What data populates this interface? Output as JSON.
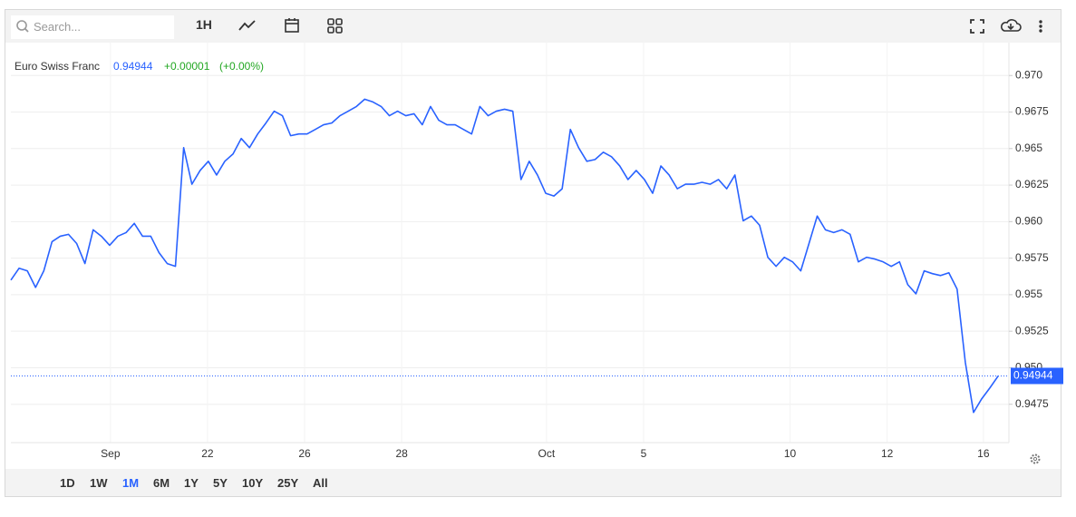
{
  "toolbar": {
    "search_placeholder": "Search...",
    "interval": "1H"
  },
  "ranges": {
    "items": [
      "1D",
      "1W",
      "1M",
      "6M",
      "1Y",
      "5Y",
      "10Y",
      "25Y",
      "All"
    ],
    "active": "1M"
  },
  "chart_data": {
    "type": "line",
    "legend": {
      "name": "Euro Swiss Franc",
      "price": "0.94944",
      "change": "+0.00001",
      "change_pct": "(+0.00%)"
    },
    "last_value": 0.94944,
    "last_label": "0.94944",
    "color": "#2962ff",
    "grid": true,
    "xlim": [
      0,
      121.3
    ],
    "xticks": [
      {
        "value": 12.1,
        "label": "Sep"
      },
      {
        "value": 23.9,
        "label": "22"
      },
      {
        "value": 35.7,
        "label": "26"
      },
      {
        "value": 47.5,
        "label": "28"
      },
      {
        "value": 65.1,
        "label": "Oct"
      },
      {
        "value": 76.9,
        "label": "5"
      },
      {
        "value": 94.7,
        "label": "10"
      },
      {
        "value": 106.5,
        "label": "12"
      },
      {
        "value": 118.2,
        "label": "16"
      }
    ],
    "ylim": [
      0.944875,
      0.97225
    ],
    "yticks": [
      {
        "value": 0.9475,
        "label": "0.9475"
      },
      {
        "value": 0.95,
        "label": "0.950"
      },
      0.9525,
      0.955,
      0.9575,
      {
        "value": 0.96,
        "label": "0.960"
      },
      0.9625,
      0.965,
      0.9675,
      {
        "value": 0.97,
        "label": "0.970"
      }
    ],
    "values": [
      0.956,
      0.95681,
      0.95663,
      0.9555,
      0.95663,
      0.95863,
      0.959,
      0.95913,
      0.9585,
      0.95713,
      0.95944,
      0.959,
      0.95838,
      0.959,
      0.95925,
      0.95988,
      0.959,
      0.959,
      0.95788,
      0.95713,
      0.95694,
      0.96506,
      0.96256,
      0.9635,
      0.96413,
      0.96319,
      0.96413,
      0.96463,
      0.96569,
      0.96506,
      0.966,
      0.96675,
      0.96756,
      0.96725,
      0.96588,
      0.966,
      0.966,
      0.96631,
      0.96663,
      0.96675,
      0.96725,
      0.96756,
      0.96788,
      0.96838,
      0.96819,
      0.96788,
      0.96725,
      0.96756,
      0.96725,
      0.96738,
      0.96663,
      0.96788,
      0.96694,
      0.96663,
      0.96663,
      0.96631,
      0.966,
      0.96788,
      0.96725,
      0.96756,
      0.96769,
      0.96756,
      0.96288,
      0.96413,
      0.96319,
      0.96194,
      0.96175,
      0.96225,
      0.96631,
      0.96506,
      0.96413,
      0.96425,
      0.96475,
      0.96444,
      0.96381,
      0.96288,
      0.9635,
      0.96288,
      0.96194,
      0.96381,
      0.96319,
      0.96225,
      0.96256,
      0.96256,
      0.96269,
      0.96256,
      0.96288,
      0.96225,
      0.96319,
      0.96006,
      0.96038,
      0.95975,
      0.95756,
      0.95694,
      0.95756,
      0.95725,
      0.95663,
      0.9585,
      0.96038,
      0.95944,
      0.95925,
      0.95944,
      0.95913,
      0.95725,
      0.95756,
      0.95744,
      0.95725,
      0.95694,
      0.95725,
      0.95569,
      0.95506,
      0.95663,
      0.95644,
      0.95631,
      0.9565,
      0.95538,
      0.95038,
      0.94694,
      0.94788,
      0.94863,
      0.94944
    ]
  }
}
